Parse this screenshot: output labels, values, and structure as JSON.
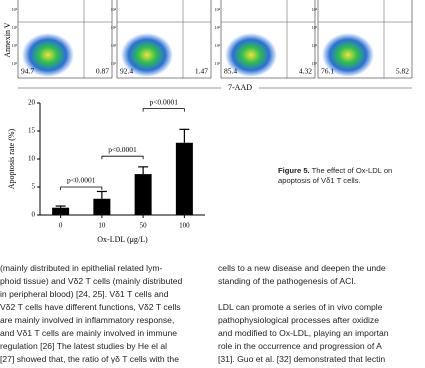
{
  "flow_figure": {
    "y_axis_label": "Annexin V",
    "x_axis_label": "7-AAD",
    "tick_labels": [
      "10⁴",
      "10³",
      "10²",
      "10¹"
    ],
    "panels": [
      {
        "lower_left": "94.7",
        "lower_right": "0.87"
      },
      {
        "lower_left": "92.4",
        "lower_right": "1.47"
      },
      {
        "lower_left": "85.4",
        "lower_right": "4.32"
      },
      {
        "lower_left": "76.1",
        "lower_right": "5.82"
      }
    ]
  },
  "chart_data": {
    "type": "bar",
    "x_label": "Ox-LDL (μg/L)",
    "y_label": "Apoptosis rate (%)",
    "categories": [
      "0",
      "10",
      "50",
      "100"
    ],
    "values": [
      1.3,
      2.9,
      7.3,
      12.9
    ],
    "errors": [
      0.3,
      1.3,
      1.3,
      2.4
    ],
    "color": "#000000",
    "ylim": [
      0,
      20
    ],
    "yticks": [
      0,
      5,
      10,
      15,
      20
    ],
    "grid": false,
    "annotations": [
      {
        "text": "p<0.0001",
        "y": 5.0
      },
      {
        "text": "p<0.0001",
        "y": 10.5
      },
      {
        "text": "p<0.0001",
        "y": 19.0
      }
    ]
  },
  "figure_caption": {
    "label": "Figure 5.",
    "text": "The effect of Ox-LDL on apoptosis of Vδ1 T cells."
  },
  "text_columns": [
    [
      "(mainly distributed in epithelial related lym-",
      "phoid tissue) and Vδ2 T cells (mainly distributed",
      "in peripheral blood) [24, 25]. Vδ1 T cells and",
      "Vδ2 T cells have different functions, Vδ2 T cells",
      "are mainly involved in inflammatory response,",
      "and Vδ1 T cells are mainly involved in immune",
      "regulation [26] The latest studies by He el al",
      "[27] showed that, the ratio of γδ T cells with the"
    ],
    [
      "cells to a new disease and deepen the unde",
      "standing of the pathogenesis of ACI.",
      "LDL can promote a series of in vivo comple",
      "pathophysiological processes after oxidize",
      "and modified to Ox-LDL, playing an importan",
      "role in the occurrence and progression of A",
      "[31]. Guo et al. [32] demonstrated that lectin"
    ]
  ]
}
